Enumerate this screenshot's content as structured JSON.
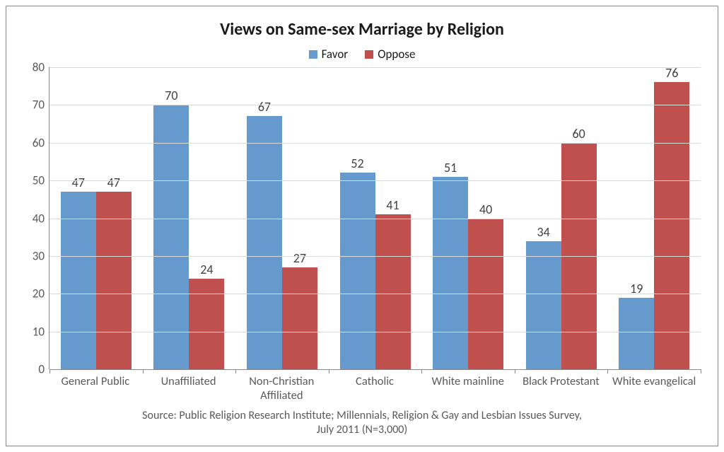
{
  "chart": {
    "type": "bar",
    "title": "Views on Same-sex Marriage by Religion",
    "title_fontsize": 24,
    "title_fontweight": "bold",
    "background_color": "#ffffff",
    "border_color": "#888888",
    "grid_color": "#d9d9d9",
    "axis_color": "#888888",
    "label_color": "#595959",
    "bar_label_color": "#404040",
    "label_fontsize": 17,
    "bar_label_fontsize": 18,
    "categories": [
      "General Public",
      "Unaffiliated",
      "Non-Christian Affiliated",
      "Catholic",
      "White mainline",
      "Black Protestant",
      "White evangelical"
    ],
    "series": [
      {
        "name": "Favor",
        "color": "#6699cc",
        "values": [
          47,
          70,
          67,
          52,
          51,
          34,
          19
        ]
      },
      {
        "name": "Oppose",
        "color": "#c0504d",
        "values": [
          47,
          24,
          27,
          41,
          40,
          60,
          76
        ]
      }
    ],
    "ylim": [
      0,
      80
    ],
    "ytick_step": 10,
    "bar_group_gap_pct": 24,
    "source_line1": "Source: Public Religion Research Institute; Millennials, Religion & Gay and Lesbian Issues Survey,",
    "source_line2": "July 2011 (N=3,000)"
  }
}
